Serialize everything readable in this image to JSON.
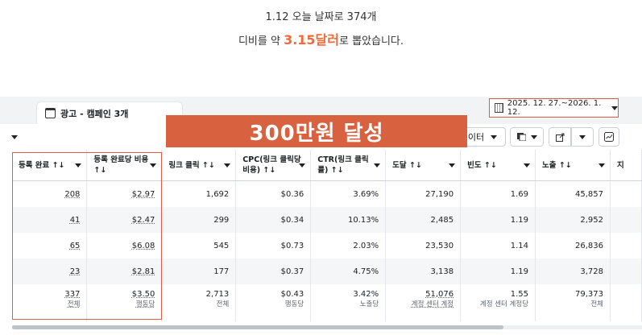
{
  "caption": {
    "line1": "1.12 오늘 날짜로 374개",
    "line2_pre": "디비를 약 ",
    "line2_highlight": "3.15달러",
    "line2_post": "로 뽑았습니다."
  },
  "tab": {
    "label": "광고 - 캠페인 3개",
    "icon": "campaign-icon"
  },
  "date_range": {
    "label": "2025. 12. 27.~2026. 1. 12.",
    "icon": "calendar-icon"
  },
  "banner": {
    "text": "300만원 달성"
  },
  "toolbar": {
    "filter_partial": "이터",
    "icons": [
      "breakdown-icon",
      "export-icon",
      "chart-icon"
    ]
  },
  "table": {
    "headers": [
      "등록 완료 ↑↓",
      "등록 완료당 비용 ↑↓",
      "링크 클릭 ↑↓",
      "CPC(링크 클릭당 비용) ↑↓",
      "CTR(링크 클릭률) ↑↓",
      "도달 ↑↓",
      "빈도 ↑↓",
      "노출 ↑↓",
      "지"
    ],
    "rows": [
      [
        "208",
        "$2.97",
        "1,692",
        "$0.36",
        "3.69%",
        "27,190",
        "1.69",
        "45,857"
      ],
      [
        "41",
        "$2.47",
        "299",
        "$0.34",
        "10.13%",
        "2,485",
        "1.19",
        "2,952"
      ],
      [
        "65",
        "$6.08",
        "545",
        "$0.73",
        "2.03%",
        "23,530",
        "1.14",
        "26,836"
      ],
      [
        "23",
        "$2.81",
        "177",
        "$0.37",
        "4.75%",
        "3,138",
        "1.19",
        "3,728"
      ]
    ],
    "summary": [
      {
        "value": "337",
        "sub": "전체"
      },
      {
        "value": "$3.50",
        "sub": "행동당"
      },
      {
        "value": "2,713",
        "sub": "전체"
      },
      {
        "value": "$0.43",
        "sub": "행동당"
      },
      {
        "value": "3.42%",
        "sub": "노출당"
      },
      {
        "value": "51,076",
        "sub": "계정 센터 계정"
      },
      {
        "value": "1.55",
        "sub": "계정 센터 계정당"
      },
      {
        "value": "79,373",
        "sub": "전체"
      }
    ]
  },
  "colors": {
    "highlight": "#f06a3a",
    "banner_bg": "#d8613f",
    "annotation_border": "#e05a4a"
  }
}
